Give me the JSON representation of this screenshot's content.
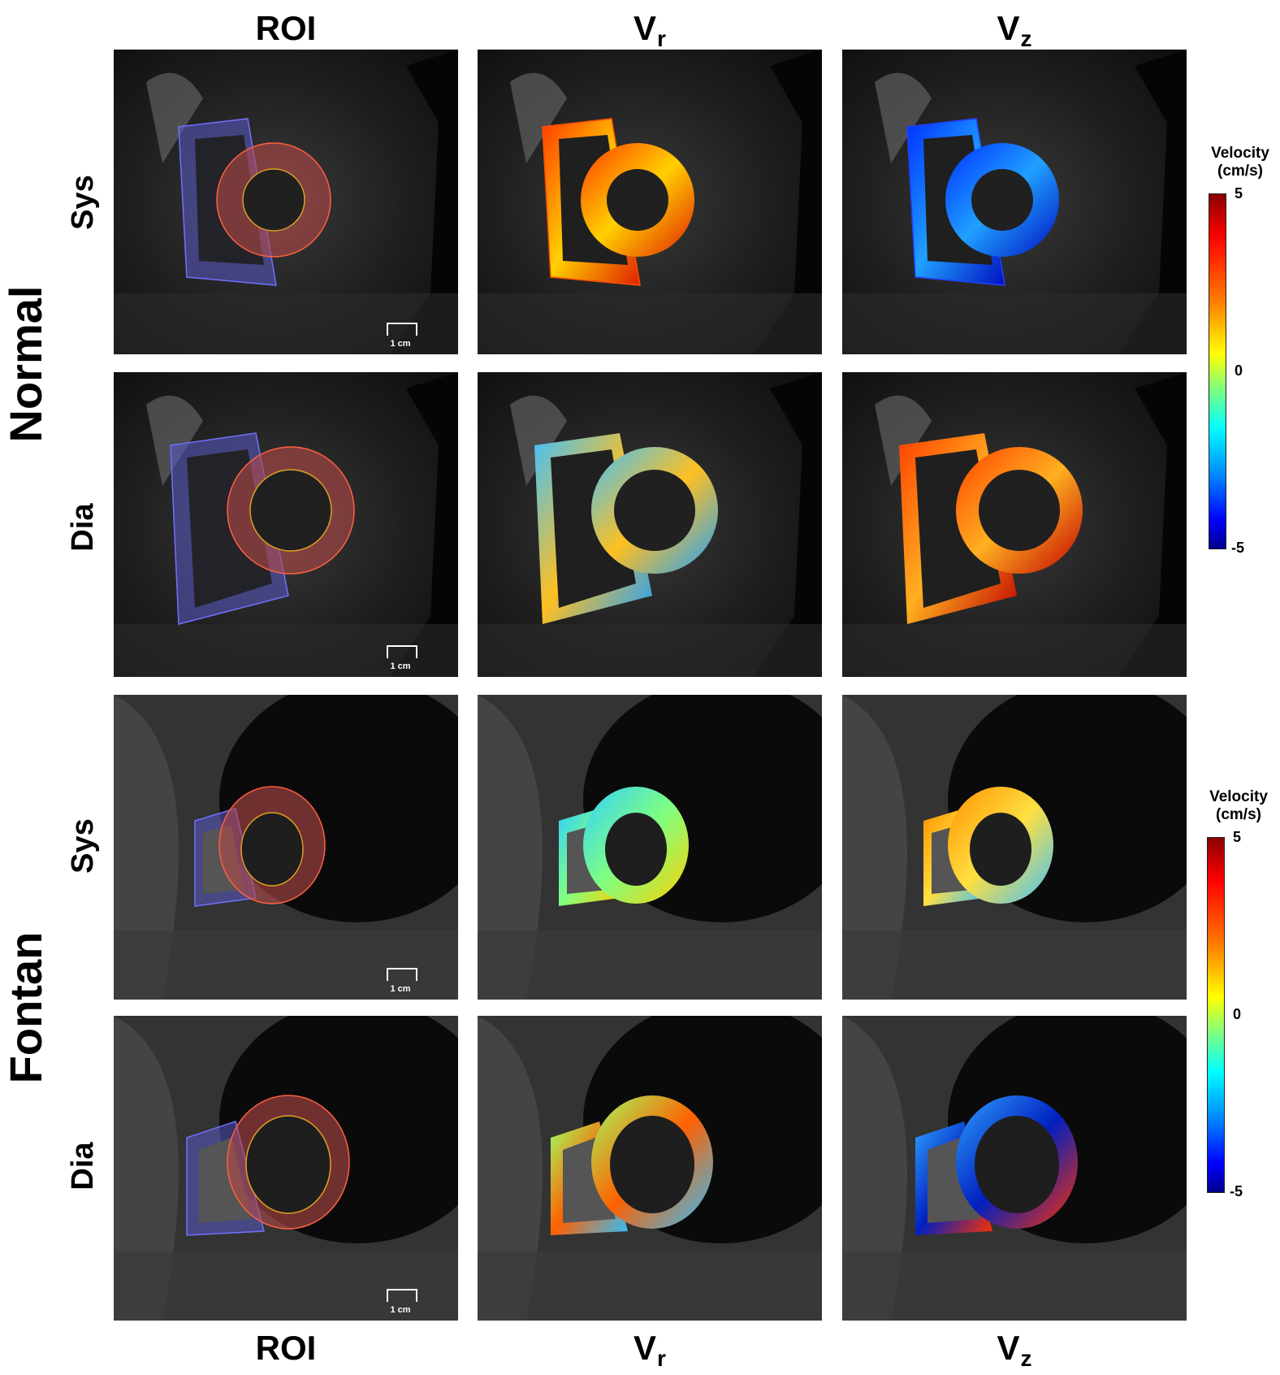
{
  "columns": {
    "roi": {
      "label": "ROI"
    },
    "vr": {
      "label": "V",
      "sub": "r"
    },
    "vz": {
      "label": "V",
      "sub": "z"
    }
  },
  "groups": {
    "normal": {
      "label": "Normal"
    },
    "fontan": {
      "label": "Fontan"
    }
  },
  "phases": {
    "normal_sys": "Sys",
    "normal_dia": "Dia",
    "fontan_sys": "Sys",
    "fontan_dia": "Dia"
  },
  "scale_bar_label": "1 cm",
  "colorbars": {
    "normal": {
      "title_line1": "Velocity",
      "title_line2": "(cm/s)",
      "max": "5",
      "mid": "0",
      "min": "-5"
    },
    "fontan": {
      "title_line1": "Velocity",
      "title_line2": "(cm/s)",
      "max": "5",
      "mid": "0",
      "min": "-5"
    }
  },
  "colors": {
    "rv_roi": "#5a5ac8",
    "lv_roi": "#b44a4a",
    "background": "#ffffff"
  }
}
